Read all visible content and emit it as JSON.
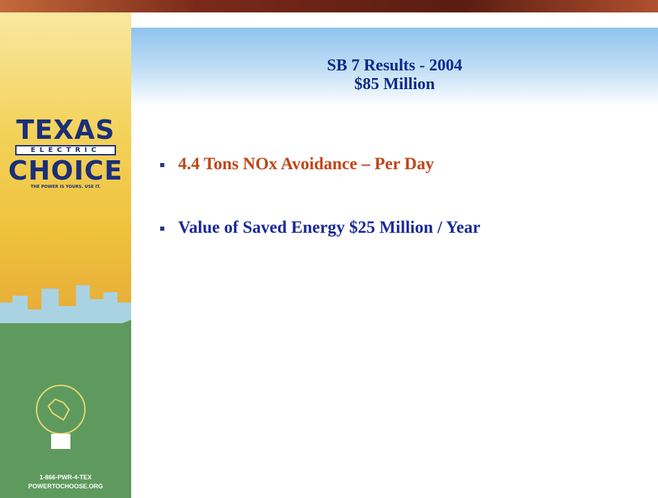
{
  "header": {
    "title": "SB 7 Results - 2004",
    "subtitle": "$85 Million"
  },
  "bullets": [
    "4.4 Tons NOx Avoidance – Per Day",
    "Value of Saved Energy $25 Million / Year"
  ],
  "sidebar": {
    "logo": {
      "word1": "TEXAS",
      "word2": "ELECTRIC",
      "word3": "CHOICE",
      "tagline": "THE POWER IS YOURS. USE IT."
    },
    "phone": "1-866-PWR-4-TEX",
    "website": "POWERTOCHOOSE.ORG"
  }
}
